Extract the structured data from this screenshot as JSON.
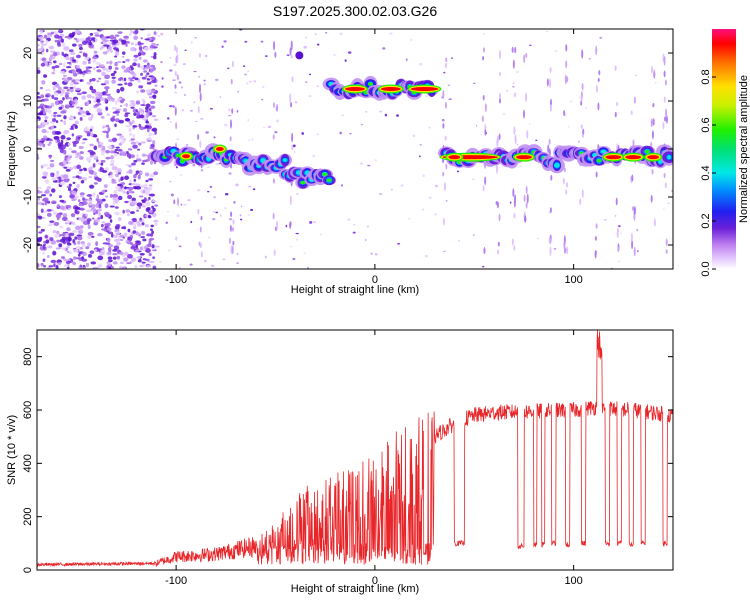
{
  "title": "S197.2025.300.02.03.G26",
  "chart_data": [
    {
      "type": "heatmap",
      "name": "spectrogram",
      "xlabel": "Height of straight line (km)",
      "ylabel": "Frequency (Hz)",
      "xlim": [
        -170,
        150
      ],
      "ylim": [
        -25,
        25
      ],
      "xticks": [
        -100,
        0,
        100
      ],
      "yticks": [
        -20,
        -10,
        0,
        10,
        20
      ],
      "colorbar": {
        "label": "Normalized spectral amplitude",
        "range": [
          0,
          1
        ],
        "ticks": [
          "0.0",
          "0.2",
          "0.4",
          "0.6",
          "0.8"
        ]
      },
      "ridge_segments": [
        {
          "x0": -110,
          "x1": -65,
          "freq": -1.5
        },
        {
          "x0": -65,
          "x1": -45,
          "freq": -3
        },
        {
          "x0": -45,
          "x1": -22,
          "freq": -6
        },
        {
          "x0": -22,
          "x1": 30,
          "freq": 12.5
        },
        {
          "x0": 36,
          "x1": 85,
          "freq": -1.7
        },
        {
          "x0": 85,
          "x1": 93,
          "freq": -3
        },
        {
          "x0": 93,
          "x1": 150,
          "freq": -1.5
        }
      ]
    },
    {
      "type": "line",
      "name": "snr",
      "xlabel": "Height of straight line (km)",
      "ylabel": "SNR (10 * v/v)",
      "xlim": [
        -170,
        150
      ],
      "ylim": [
        0,
        900
      ],
      "xticks": [
        -100,
        0,
        100
      ],
      "yticks": [
        0,
        200,
        400,
        600,
        800
      ],
      "color": "#e8262a",
      "profile": [
        {
          "x": -170,
          "y": 20
        },
        {
          "x": -110,
          "y": 25
        },
        {
          "x": -100,
          "y": 50
        },
        {
          "x": -80,
          "y": 60
        },
        {
          "x": -60,
          "y": 90
        },
        {
          "x": -50,
          "y": 150
        },
        {
          "x": -40,
          "y": 220
        },
        {
          "x": -30,
          "y": 260
        },
        {
          "x": -20,
          "y": 280
        },
        {
          "x": -10,
          "y": 300
        },
        {
          "x": 0,
          "y": 350
        },
        {
          "x": 10,
          "y": 400
        },
        {
          "x": 20,
          "y": 430
        },
        {
          "x": 30,
          "y": 500
        },
        {
          "x": 40,
          "y": 550
        },
        {
          "x": 50,
          "y": 580
        },
        {
          "x": 60,
          "y": 590
        },
        {
          "x": 80,
          "y": 595
        },
        {
          "x": 100,
          "y": 600
        },
        {
          "x": 110,
          "y": 610
        },
        {
          "x": 130,
          "y": 600
        },
        {
          "x": 150,
          "y": 580
        }
      ],
      "dropouts": [
        {
          "x0": 40,
          "x1": 45,
          "y": 100
        },
        {
          "x0": 72,
          "x1": 75,
          "y": 90
        },
        {
          "x0": 80,
          "x1": 81.5,
          "y": 95
        },
        {
          "x0": 84,
          "x1": 85.5,
          "y": 95
        },
        {
          "x0": 89,
          "x1": 91,
          "y": 100
        },
        {
          "x0": 96,
          "x1": 98,
          "y": 95
        },
        {
          "x0": 104,
          "x1": 106,
          "y": 100
        },
        {
          "x0": 116,
          "x1": 118,
          "y": 100
        },
        {
          "x0": 122,
          "x1": 124,
          "y": 100
        },
        {
          "x0": 128,
          "x1": 130,
          "y": 95
        },
        {
          "x0": 134,
          "x1": 136,
          "y": 100
        },
        {
          "x0": 145,
          "x1": 147,
          "y": 100
        }
      ],
      "peak": {
        "x": 113,
        "y": 900
      }
    }
  ]
}
